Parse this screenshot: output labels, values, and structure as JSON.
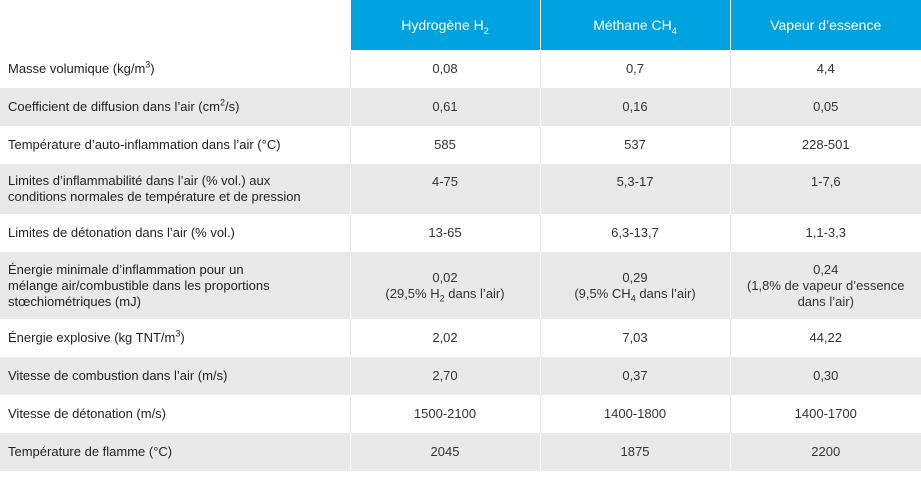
{
  "headers": {
    "col1": "Hydrogène H",
    "col1_sub": "2",
    "col2": "Méthane CH",
    "col2_sub": "4",
    "col3": "Vapeur d’essence"
  },
  "rows": [
    {
      "label": "Masse volumique (kg/m",
      "label_sup": "3",
      "label_end": ")",
      "v1": "0,08",
      "v2": "0,7",
      "v3": "4,4"
    },
    {
      "label": "Coefficient de diffusion dans l’air (cm",
      "label_sup": "2",
      "label_end": "/s)",
      "v1": "0,61",
      "v2": "0,16",
      "v3": "0,05"
    },
    {
      "label": "Température d’auto-inflammation dans l’air (°C)",
      "v1": "585",
      "v2": "537",
      "v3": "228-501"
    },
    {
      "label_line1": "Limites d’inflammabilité dans l’air (% vol.) aux",
      "label_line2": "conditions normales de température et de pression",
      "v1": "4-75",
      "v2": "5,3-17",
      "v3": "1-7,6"
    },
    {
      "label": "Limites de détonation dans l’air (% vol.)",
      "v1": "13-65",
      "v2": "6,3-13,7",
      "v3": "1,1-3,3"
    },
    {
      "label_line1": "Énergie minimale d’inflammation pour un",
      "label_line2": "mélange air/combustible dans les proportions",
      "label_line3": "stœchiométriques (mJ)",
      "v1": "0,02",
      "v1_note_a": "(29,5% H",
      "v1_note_sub": "2",
      "v1_note_b": " dans l’air)",
      "v2": "0,29",
      "v2_note_a": "(9,5% CH",
      "v2_note_sub": "4",
      "v2_note_b": " dans l’air)",
      "v3": "0,24",
      "v3_note_line1": "(1,8% de vapeur d’essence",
      "v3_note_line2": "dans l’air)"
    },
    {
      "label": "Énergie explosive (kg TNT/m",
      "label_sup": "3",
      "label_end": ")",
      "v1": "2,02",
      "v2": "7,03",
      "v3": "44,22"
    },
    {
      "label": "Vitesse de combustion dans l’air (m/s)",
      "v1": "2,70",
      "v2": "0,37",
      "v3": "0,30"
    },
    {
      "label": "Vitesse de détonation (m/s)",
      "v1": "1500-2100",
      "v2": "1400-1800",
      "v3": "1400-1700"
    },
    {
      "label": "Température de flamme (°C)",
      "v1": "2045",
      "v2": "1875",
      "v3": "2200"
    }
  ]
}
